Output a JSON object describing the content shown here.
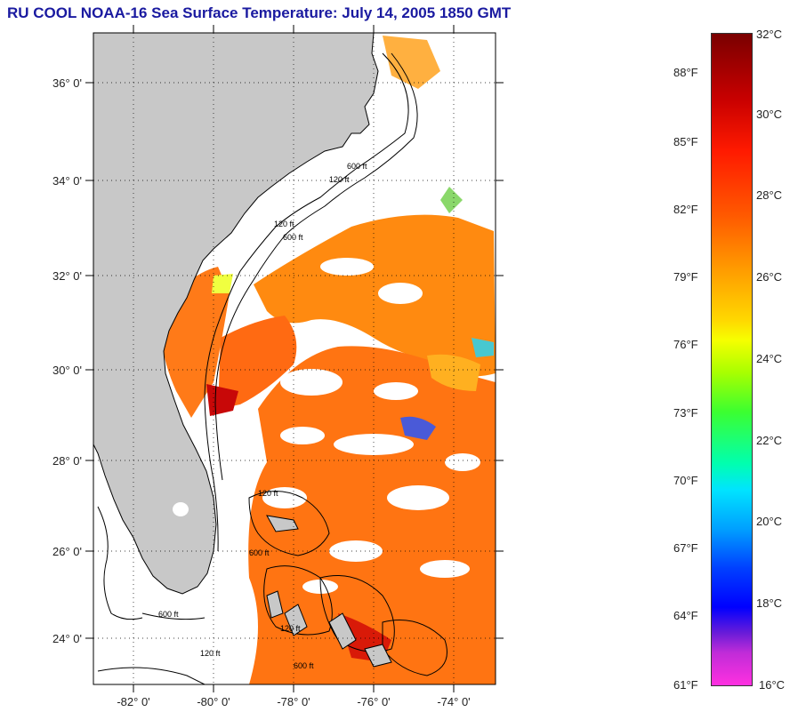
{
  "title": "RU COOL  NOAA-16  Sea Surface Temperature:  July 14, 2005 1850 GMT",
  "map": {
    "lat_labels": [
      "36° 0'",
      "34° 0'",
      "32° 0'",
      "30° 0'",
      "28° 0'",
      "26° 0'",
      "24° 0'"
    ],
    "lon_labels": [
      "-82° 0'",
      "-80° 0'",
      "-78° 0'",
      "-76° 0'",
      "-74° 0'"
    ],
    "contour_labels": [
      "120 ft",
      "600 ft",
      "120 ft",
      "600 ft",
      "120 ft",
      "600 ft",
      "120 ft",
      "600 ft",
      "600 ft",
      "120 ft"
    ],
    "colors": {
      "land": "#c8c8c8",
      "cloud": "#ffffff",
      "sst_warm": "#ff7a10",
      "sst_hot": "#c80000",
      "coast": "#000000"
    }
  },
  "colorbar": {
    "celsius": [
      "32°C",
      "30°C",
      "28°C",
      "26°C",
      "24°C",
      "22°C",
      "20°C",
      "18°C",
      "16°C"
    ],
    "fahrenheit": [
      "88°F",
      "85°F",
      "82°F",
      "79°F",
      "76°F",
      "73°F",
      "70°F",
      "67°F",
      "64°F",
      "61°F"
    ]
  }
}
